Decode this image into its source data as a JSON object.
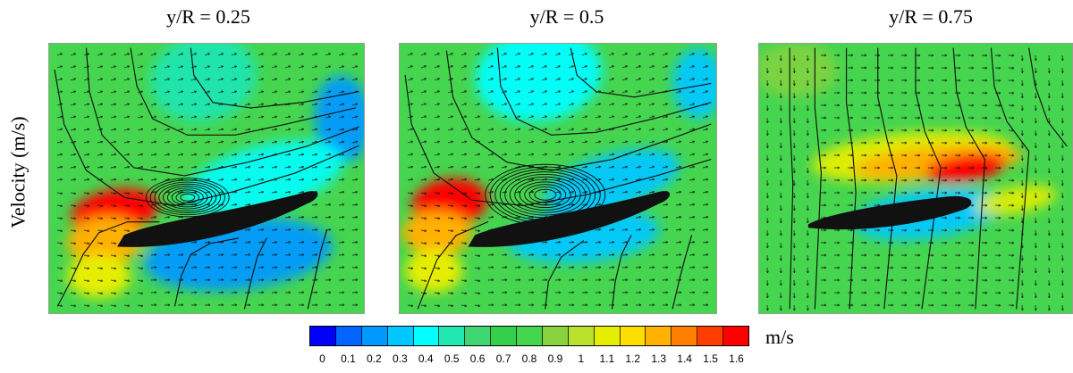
{
  "figure": {
    "ylabel": "Velocity (m/s)",
    "panels": [
      {
        "title": "y/R = 0.25",
        "vortex": "tight"
      },
      {
        "title": "y/R = 0.5",
        "vortex": "large"
      },
      {
        "title": "y/R = 0.75",
        "vortex": "none"
      }
    ]
  },
  "chart_data": {
    "type": "heatmap",
    "panels": [
      {
        "title": "y/R = 0.25"
      },
      {
        "title": "y/R = 0.5"
      },
      {
        "title": "y/R = 0.75"
      }
    ],
    "ylabel": "Velocity (m/s)",
    "colorbar": {
      "unit": "m/s",
      "min": 0,
      "max": 1.6,
      "ticks": [
        "0",
        "0.1",
        "0.2",
        "0.3",
        "0.4",
        "0.5",
        "0.6",
        "0.7",
        "0.8",
        "0.9",
        "1",
        "1.1",
        "1.2",
        "1.3",
        "1.4",
        "1.5",
        "1.6"
      ],
      "colors": [
        "#0000ff",
        "#0066ff",
        "#0099ff",
        "#00c8ff",
        "#00ffff",
        "#20e6b0",
        "#3fd870",
        "#32d04b",
        "#45d54f",
        "#8ad33f",
        "#b8e02d",
        "#e6ee00",
        "#ffdd00",
        "#ffb000",
        "#ff8000",
        "#ff3d00",
        "#ff0000"
      ]
    }
  }
}
